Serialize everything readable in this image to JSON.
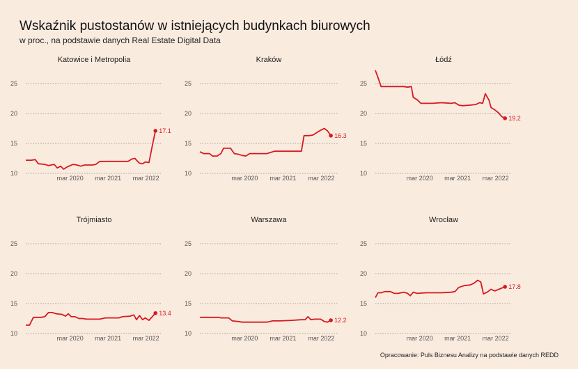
{
  "title": "Wskaźnik pustostanów w istniejących budynkach biurowych",
  "subtitle": "w proc., na podstawie danych Real Estate Digital Data",
  "footer": "Opracowanie: Puls Biznesu Analizy na podstawie danych REDD",
  "colors": {
    "line": "#d71921",
    "grid": "#888888",
    "background": "#faebdf"
  },
  "chart_data": {
    "type": "line",
    "facets": "small-multiples 3x2",
    "ylim": [
      10,
      27
    ],
    "yticks": [
      10,
      15,
      20,
      25
    ],
    "xticks": [
      {
        "label": "mar 2020",
        "x": 2020.17
      },
      {
        "label": "mar 2021",
        "x": 2021.17
      },
      {
        "label": "mar 2022",
        "x": 2022.17
      }
    ],
    "xlim": [
      2019.0,
      2022.6
    ],
    "grid": "horizontal dotted",
    "panels": [
      {
        "name": "Katowice i Metropolia",
        "end_label": "17.1",
        "points": [
          [
            2019.0,
            12.2
          ],
          [
            2019.15,
            12.2
          ],
          [
            2019.25,
            12.3
          ],
          [
            2019.33,
            11.6
          ],
          [
            2019.5,
            11.5
          ],
          [
            2019.6,
            11.3
          ],
          [
            2019.75,
            11.5
          ],
          [
            2019.83,
            10.9
          ],
          [
            2019.92,
            11.2
          ],
          [
            2020.0,
            10.7
          ],
          [
            2020.1,
            11.1
          ],
          [
            2020.25,
            11.5
          ],
          [
            2020.35,
            11.4
          ],
          [
            2020.45,
            11.2
          ],
          [
            2020.55,
            11.4
          ],
          [
            2020.75,
            11.4
          ],
          [
            2020.85,
            11.5
          ],
          [
            2020.95,
            12.0
          ],
          [
            2021.1,
            12.0
          ],
          [
            2021.5,
            12.0
          ],
          [
            2021.7,
            12.0
          ],
          [
            2021.8,
            12.4
          ],
          [
            2021.88,
            12.5
          ],
          [
            2021.95,
            12.0
          ],
          [
            2022.0,
            11.7
          ],
          [
            2022.08,
            11.6
          ],
          [
            2022.15,
            11.9
          ],
          [
            2022.25,
            11.8
          ],
          [
            2022.35,
            15.0
          ],
          [
            2022.42,
            17.1
          ]
        ]
      },
      {
        "name": "Kraków",
        "end_label": "16.3",
        "points": [
          [
            2019.0,
            13.6
          ],
          [
            2019.1,
            13.3
          ],
          [
            2019.25,
            13.3
          ],
          [
            2019.33,
            12.9
          ],
          [
            2019.45,
            12.9
          ],
          [
            2019.55,
            13.3
          ],
          [
            2019.62,
            14.2
          ],
          [
            2019.8,
            14.2
          ],
          [
            2019.9,
            13.3
          ],
          [
            2020.0,
            13.2
          ],
          [
            2020.1,
            13.0
          ],
          [
            2020.2,
            12.9
          ],
          [
            2020.3,
            13.3
          ],
          [
            2020.5,
            13.3
          ],
          [
            2020.75,
            13.3
          ],
          [
            2020.85,
            13.5
          ],
          [
            2020.95,
            13.7
          ],
          [
            2021.2,
            13.7
          ],
          [
            2021.5,
            13.7
          ],
          [
            2021.65,
            13.7
          ],
          [
            2021.72,
            16.3
          ],
          [
            2021.85,
            16.3
          ],
          [
            2021.95,
            16.4
          ],
          [
            2022.05,
            16.8
          ],
          [
            2022.15,
            17.2
          ],
          [
            2022.25,
            17.5
          ],
          [
            2022.33,
            17.1
          ],
          [
            2022.42,
            16.3
          ]
        ]
      },
      {
        "name": "Łódź",
        "end_label": "19.2",
        "points": [
          [
            2019.0,
            27.2
          ],
          [
            2019.07,
            26.0
          ],
          [
            2019.15,
            24.5
          ],
          [
            2019.5,
            24.5
          ],
          [
            2019.75,
            24.5
          ],
          [
            2019.85,
            24.4
          ],
          [
            2019.95,
            24.5
          ],
          [
            2020.0,
            22.7
          ],
          [
            2020.1,
            22.3
          ],
          [
            2020.2,
            21.7
          ],
          [
            2020.5,
            21.7
          ],
          [
            2020.75,
            21.8
          ],
          [
            2021.0,
            21.7
          ],
          [
            2021.1,
            21.8
          ],
          [
            2021.2,
            21.4
          ],
          [
            2021.3,
            21.3
          ],
          [
            2021.5,
            21.4
          ],
          [
            2021.65,
            21.5
          ],
          [
            2021.75,
            21.8
          ],
          [
            2021.83,
            21.7
          ],
          [
            2021.9,
            23.3
          ],
          [
            2022.0,
            22.2
          ],
          [
            2022.05,
            21.0
          ],
          [
            2022.15,
            20.6
          ],
          [
            2022.25,
            20.1
          ],
          [
            2022.33,
            19.5
          ],
          [
            2022.42,
            19.2
          ]
        ]
      },
      {
        "name": "Trójmiasto",
        "end_label": "13.4",
        "points": [
          [
            2019.0,
            11.4
          ],
          [
            2019.1,
            11.4
          ],
          [
            2019.2,
            12.7
          ],
          [
            2019.4,
            12.7
          ],
          [
            2019.5,
            12.8
          ],
          [
            2019.6,
            13.5
          ],
          [
            2019.7,
            13.5
          ],
          [
            2019.8,
            13.3
          ],
          [
            2019.95,
            13.2
          ],
          [
            2020.05,
            12.9
          ],
          [
            2020.12,
            13.3
          ],
          [
            2020.2,
            12.8
          ],
          [
            2020.3,
            12.8
          ],
          [
            2020.4,
            12.5
          ],
          [
            2020.5,
            12.5
          ],
          [
            2020.6,
            12.4
          ],
          [
            2020.8,
            12.4
          ],
          [
            2020.95,
            12.4
          ],
          [
            2021.1,
            12.6
          ],
          [
            2021.45,
            12.6
          ],
          [
            2021.55,
            12.8
          ],
          [
            2021.75,
            12.9
          ],
          [
            2021.85,
            13.1
          ],
          [
            2021.92,
            12.3
          ],
          [
            2022.0,
            13.0
          ],
          [
            2022.08,
            12.3
          ],
          [
            2022.15,
            12.6
          ],
          [
            2022.25,
            12.2
          ],
          [
            2022.42,
            13.4
          ]
        ]
      },
      {
        "name": "Warszawa",
        "end_label": "12.2",
        "points": [
          [
            2019.0,
            12.7
          ],
          [
            2019.3,
            12.7
          ],
          [
            2019.5,
            12.7
          ],
          [
            2019.55,
            12.6
          ],
          [
            2019.75,
            12.6
          ],
          [
            2019.85,
            12.1
          ],
          [
            2020.0,
            12.0
          ],
          [
            2020.1,
            11.9
          ],
          [
            2020.3,
            11.9
          ],
          [
            2020.5,
            11.9
          ],
          [
            2020.75,
            11.9
          ],
          [
            2020.9,
            12.1
          ],
          [
            2021.1,
            12.1
          ],
          [
            2021.4,
            12.2
          ],
          [
            2021.65,
            12.3
          ],
          [
            2021.75,
            12.3
          ],
          [
            2021.82,
            12.8
          ],
          [
            2021.9,
            12.3
          ],
          [
            2022.0,
            12.4
          ],
          [
            2022.15,
            12.4
          ],
          [
            2022.25,
            12.0
          ],
          [
            2022.33,
            11.9
          ],
          [
            2022.42,
            12.2
          ]
        ]
      },
      {
        "name": "Wrocław",
        "end_label": "17.8",
        "points": [
          [
            2019.0,
            16.0
          ],
          [
            2019.07,
            16.8
          ],
          [
            2019.15,
            16.8
          ],
          [
            2019.25,
            17.0
          ],
          [
            2019.4,
            17.0
          ],
          [
            2019.5,
            16.7
          ],
          [
            2019.6,
            16.7
          ],
          [
            2019.75,
            16.9
          ],
          [
            2019.85,
            16.7
          ],
          [
            2019.92,
            16.3
          ],
          [
            2020.0,
            16.9
          ],
          [
            2020.1,
            16.7
          ],
          [
            2020.35,
            16.8
          ],
          [
            2020.5,
            16.8
          ],
          [
            2020.75,
            16.8
          ],
          [
            2021.0,
            16.9
          ],
          [
            2021.1,
            17.0
          ],
          [
            2021.2,
            17.7
          ],
          [
            2021.35,
            18.0
          ],
          [
            2021.5,
            18.1
          ],
          [
            2021.6,
            18.4
          ],
          [
            2021.7,
            18.9
          ],
          [
            2021.78,
            18.6
          ],
          [
            2021.85,
            16.6
          ],
          [
            2021.95,
            16.9
          ],
          [
            2022.05,
            17.4
          ],
          [
            2022.15,
            17.1
          ],
          [
            2022.3,
            17.5
          ],
          [
            2022.42,
            17.8
          ]
        ]
      }
    ]
  }
}
